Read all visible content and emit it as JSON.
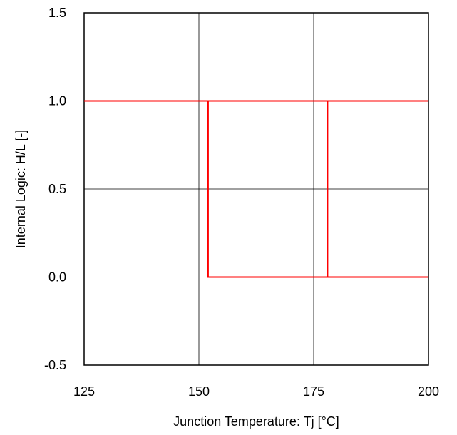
{
  "chart_data": {
    "type": "line",
    "title": "",
    "xlabel": "Junction Temperature: Tj [°C]",
    "ylabel": "Internal Logic: H/L [-]",
    "xlim": [
      125,
      200
    ],
    "ylim": [
      -0.5,
      1.5
    ],
    "xticks": [
      125,
      150,
      175,
      200
    ],
    "xtick_labels": [
      "125",
      "150",
      "175",
      "200"
    ],
    "yticks": [
      -0.5,
      0.0,
      0.5,
      1.0,
      1.5
    ],
    "ytick_labels": [
      "-0.5",
      "0.0",
      "0.5",
      "1.0",
      "1.5"
    ],
    "grid": true,
    "legend": "none",
    "series": [
      {
        "color": "#ff0000",
        "x": [
          125,
          152,
          152,
          178,
          178,
          200
        ],
        "y": [
          1,
          1,
          0,
          0,
          1,
          1
        ]
      },
      {
        "color": "#ff0000",
        "x": [
          125,
          152,
          152,
          178,
          178,
          200
        ],
        "y": [
          1,
          1,
          1,
          1,
          0,
          0
        ]
      }
    ]
  }
}
